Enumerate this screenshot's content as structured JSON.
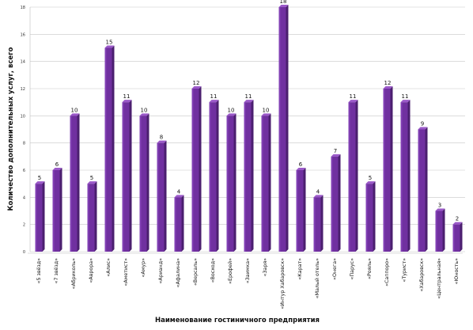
{
  "chart_data": {
    "type": "bar",
    "title": "",
    "xlabel": "Наименование гостиничного предприятия",
    "ylabel": "Количество дополнительных услуг, всего",
    "ylim": [
      0,
      18
    ],
    "yticks": [
      0,
      2,
      4,
      6,
      8,
      10,
      12,
      14,
      16,
      18
    ],
    "grid": true,
    "bar_color": "#7030a0",
    "categories": [
      "«5 звёзд»",
      "«7 звёзд»",
      "«Абриколь»",
      "«Аврора»",
      "«Алис»",
      "«Аметист»",
      "«Амур»",
      "«Арианд»",
      "«Афалина»",
      "«Версаль»",
      "«Восход»",
      "«Ерофей»",
      "«Заимка»",
      "«Заря»",
      "«Интур Хабаровск»",
      "«Карат»",
      "«Малый отель»",
      "«Онега»",
      "«Парус»",
      "«Рояль»",
      "«Саппоро»",
      "«Турист»",
      "«Хабаровск»",
      "«Центральная»",
      "«Юность»"
    ],
    "values": [
      5,
      6,
      10,
      5,
      15,
      11,
      10,
      8,
      4,
      12,
      11,
      10,
      11,
      10,
      18,
      6,
      4,
      7,
      11,
      5,
      12,
      11,
      9,
      3,
      2
    ]
  }
}
